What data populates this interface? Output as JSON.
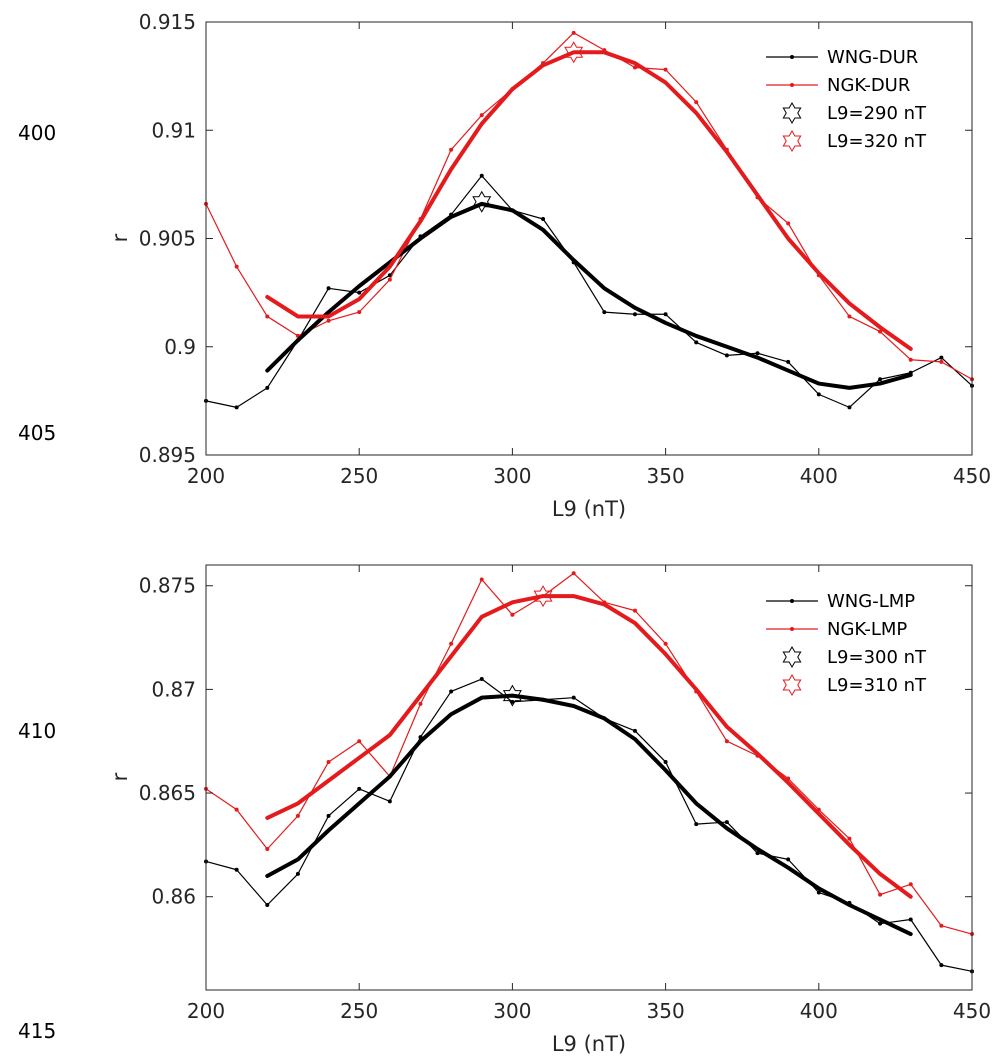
{
  "line_numbers": [
    "400",
    "405",
    "410",
    "415"
  ],
  "chart_data": [
    {
      "type": "line",
      "title": "",
      "xlabel": "L9 (nT)",
      "ylabel": "r",
      "xlim": [
        200,
        450
      ],
      "ylim": [
        0.895,
        0.915
      ],
      "xticks": [
        200,
        250,
        300,
        350,
        400,
        450
      ],
      "yticks": [
        0.895,
        0.9,
        0.905,
        0.91,
        0.915
      ],
      "xtick_labels": [
        "200",
        "250",
        "300",
        "350",
        "400",
        "450"
      ],
      "ytick_labels": [
        "0.895",
        "0.9",
        "0.905",
        "0.91",
        "0.915"
      ],
      "grid": false,
      "legend_position": "top-right",
      "series": [
        {
          "name": "WNG-DUR",
          "color": "#000000",
          "style": "thin-line-with-dots",
          "x": [
            200,
            210,
            220,
            230,
            240,
            250,
            260,
            270,
            280,
            290,
            300,
            310,
            320,
            330,
            340,
            350,
            360,
            370,
            380,
            390,
            400,
            410,
            420,
            430,
            440,
            450
          ],
          "y": [
            0.8975,
            0.8972,
            0.8981,
            0.9003,
            0.9027,
            0.9025,
            0.9033,
            0.9051,
            0.9061,
            0.9079,
            0.9063,
            0.9059,
            0.9039,
            0.9016,
            0.9015,
            0.9015,
            0.9002,
            0.8996,
            0.8997,
            0.8993,
            0.8978,
            0.8972,
            0.8985,
            0.8988,
            0.8995,
            0.8982
          ]
        },
        {
          "name": "NGK-DUR",
          "color": "#e41a1c",
          "style": "thin-line-with-dots",
          "x": [
            200,
            210,
            220,
            230,
            240,
            250,
            260,
            270,
            280,
            290,
            300,
            310,
            320,
            330,
            340,
            350,
            360,
            370,
            380,
            390,
            400,
            410,
            420,
            430,
            440,
            450
          ],
          "y": [
            0.9066,
            0.9037,
            0.9014,
            0.9005,
            0.9012,
            0.9016,
            0.9031,
            0.9059,
            0.9091,
            0.9107,
            0.9119,
            0.9131,
            0.9145,
            0.9137,
            0.9129,
            0.9128,
            0.9113,
            0.9091,
            0.9069,
            0.9057,
            0.9033,
            0.9014,
            0.9007,
            0.8994,
            0.8993,
            0.8985
          ]
        },
        {
          "name": "",
          "color": "#000000",
          "style": "thick-smoothed",
          "x": [
            220,
            230,
            240,
            250,
            260,
            270,
            280,
            290,
            300,
            310,
            320,
            330,
            340,
            350,
            360,
            370,
            380,
            390,
            400,
            410,
            420,
            430
          ],
          "y": [
            0.8989,
            0.9003,
            0.9016,
            0.9028,
            0.9039,
            0.905,
            0.906,
            0.9066,
            0.9063,
            0.9054,
            0.904,
            0.9027,
            0.9018,
            0.9011,
            0.9005,
            0.9,
            0.8995,
            0.8989,
            0.8983,
            0.8981,
            0.8983,
            0.8987
          ]
        },
        {
          "name": "",
          "color": "#e41a1c",
          "style": "thick-smoothed",
          "x": [
            220,
            230,
            240,
            250,
            260,
            270,
            280,
            290,
            300,
            310,
            320,
            330,
            340,
            350,
            360,
            370,
            380,
            390,
            400,
            410,
            420,
            430
          ],
          "y": [
            0.9023,
            0.9014,
            0.9014,
            0.9022,
            0.9037,
            0.9058,
            0.9082,
            0.9103,
            0.9119,
            0.913,
            0.9136,
            0.9136,
            0.9131,
            0.9122,
            0.9108,
            0.909,
            0.907,
            0.905,
            0.9034,
            0.902,
            0.9009,
            0.8999
          ]
        }
      ],
      "markers": [
        {
          "name": "L9=290 nT",
          "x": 290,
          "y": 0.9067,
          "color": "#000000",
          "symbol": "hexagram"
        },
        {
          "name": "L9=320 nT",
          "x": 320,
          "y": 0.9136,
          "color": "#e41a1c",
          "symbol": "hexagram"
        }
      ]
    },
    {
      "type": "line",
      "title": "",
      "xlabel": "L9 (nT)",
      "ylabel": "r",
      "xlim": [
        200,
        450
      ],
      "ylim": [
        0.8555,
        0.876
      ],
      "xticks": [
        200,
        250,
        300,
        350,
        400,
        450
      ],
      "yticks": [
        0.86,
        0.865,
        0.87,
        0.875
      ],
      "xtick_labels": [
        "200",
        "250",
        "300",
        "350",
        "400",
        "450"
      ],
      "ytick_labels": [
        "0.86",
        "0.865",
        "0.87",
        "0.875"
      ],
      "grid": false,
      "legend_position": "top-right",
      "series": [
        {
          "name": "WNG-LMP",
          "color": "#000000",
          "style": "thin-line-with-dots",
          "x": [
            200,
            210,
            220,
            230,
            240,
            250,
            260,
            270,
            280,
            290,
            300,
            310,
            320,
            330,
            340,
            350,
            360,
            370,
            380,
            390,
            400,
            410,
            420,
            430,
            440,
            450
          ],
          "y": [
            0.8617,
            0.8613,
            0.8596,
            0.8611,
            0.8639,
            0.8652,
            0.8646,
            0.8677,
            0.8699,
            0.8705,
            0.8694,
            0.8695,
            0.8696,
            0.8686,
            0.868,
            0.8665,
            0.8635,
            0.8636,
            0.8621,
            0.8618,
            0.8602,
            0.8597,
            0.8587,
            0.8589,
            0.8567,
            0.8564
          ]
        },
        {
          "name": "NGK-LMP",
          "color": "#e41a1c",
          "style": "thin-line-with-dots",
          "x": [
            200,
            210,
            220,
            230,
            240,
            250,
            260,
            270,
            280,
            290,
            300,
            310,
            320,
            330,
            340,
            350,
            360,
            370,
            380,
            390,
            400,
            410,
            420,
            430,
            440,
            450
          ],
          "y": [
            0.8652,
            0.8642,
            0.8623,
            0.8639,
            0.8665,
            0.8675,
            0.8658,
            0.8693,
            0.8722,
            0.8753,
            0.8736,
            0.8745,
            0.8756,
            0.8742,
            0.8738,
            0.8722,
            0.8699,
            0.8675,
            0.8668,
            0.8657,
            0.8642,
            0.8628,
            0.8601,
            0.8606,
            0.8586,
            0.8582
          ]
        },
        {
          "name": "",
          "color": "#000000",
          "style": "thick-smoothed",
          "x": [
            220,
            230,
            240,
            250,
            260,
            270,
            280,
            290,
            300,
            310,
            320,
            330,
            340,
            350,
            360,
            370,
            380,
            390,
            400,
            410,
            420,
            430
          ],
          "y": [
            0.861,
            0.8618,
            0.8632,
            0.8645,
            0.8658,
            0.8675,
            0.8688,
            0.8696,
            0.8697,
            0.8695,
            0.8692,
            0.8686,
            0.8676,
            0.8661,
            0.8645,
            0.8633,
            0.8623,
            0.8614,
            0.8604,
            0.8596,
            0.8589,
            0.8582
          ]
        },
        {
          "name": "",
          "color": "#e41a1c",
          "style": "thick-smoothed",
          "x": [
            220,
            230,
            240,
            250,
            260,
            270,
            280,
            290,
            300,
            310,
            320,
            330,
            340,
            350,
            360,
            370,
            380,
            390,
            400,
            410,
            420,
            430
          ],
          "y": [
            0.8638,
            0.8645,
            0.8656,
            0.8667,
            0.8678,
            0.8697,
            0.8716,
            0.8735,
            0.8742,
            0.8745,
            0.8745,
            0.8741,
            0.8732,
            0.8717,
            0.87,
            0.8682,
            0.8669,
            0.8655,
            0.864,
            0.8625,
            0.8611,
            0.86
          ]
        }
      ],
      "markers": [
        {
          "name": "L9=300 nT",
          "x": 300,
          "y": 0.8697,
          "color": "#000000",
          "symbol": "hexagram"
        },
        {
          "name": "L9=310 nT",
          "x": 310,
          "y": 0.8745,
          "color": "#e41a1c",
          "symbol": "hexagram"
        }
      ]
    }
  ]
}
